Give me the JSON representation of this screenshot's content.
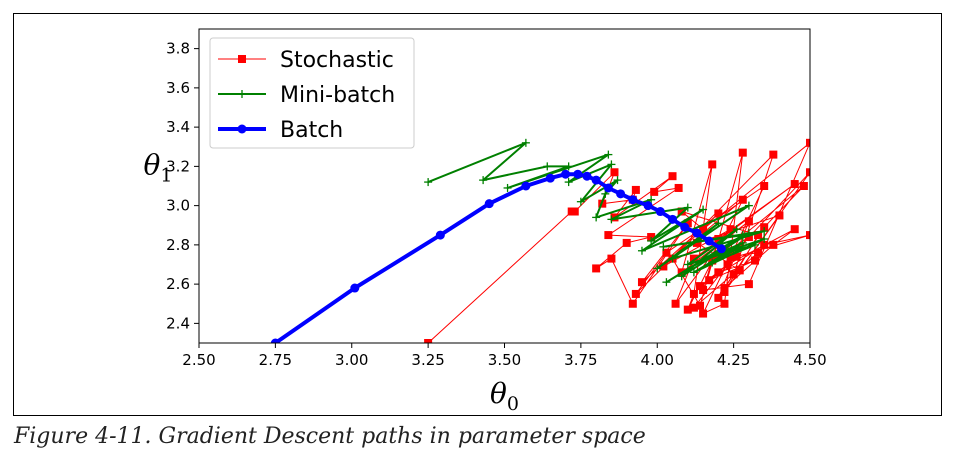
{
  "caption": "Figure 4-11. Gradient Descent paths in parameter space",
  "chart_data": {
    "type": "line",
    "xlabel": "θ0",
    "ylabel": "θ1",
    "xlim": [
      2.5,
      4.5
    ],
    "ylim": [
      2.3,
      3.9
    ],
    "xticks": [
      "2.50",
      "2.75",
      "3.00",
      "3.25",
      "3.50",
      "3.75",
      "4.00",
      "4.25",
      "4.50"
    ],
    "yticks": [
      "2.4",
      "2.6",
      "2.8",
      "3.0",
      "3.2",
      "3.4",
      "3.6",
      "3.8"
    ],
    "xtick_values": [
      2.5,
      2.75,
      3.0,
      3.25,
      3.5,
      3.75,
      4.0,
      4.25,
      4.5
    ],
    "ytick_values": [
      2.4,
      2.6,
      2.8,
      3.0,
      3.2,
      3.4,
      3.6,
      3.8
    ],
    "grid": false,
    "legend_position": "top-left",
    "series": [
      {
        "name": "Stochastic",
        "color": "#ff0000",
        "marker": "square",
        "linewidth": 1,
        "points": [
          [
            3.25,
            2.3
          ],
          [
            3.72,
            2.97
          ],
          [
            3.73,
            2.97
          ],
          [
            3.86,
            3.17
          ],
          [
            3.82,
            3.01
          ],
          [
            3.92,
            3.03
          ],
          [
            3.93,
            3.08
          ],
          [
            3.86,
            2.94
          ],
          [
            4.05,
            3.15
          ],
          [
            3.99,
            3.07
          ],
          [
            4.07,
            3.09
          ],
          [
            3.84,
            2.85
          ],
          [
            3.98,
            2.84
          ],
          [
            3.9,
            2.81
          ],
          [
            3.8,
            2.68
          ],
          [
            3.85,
            2.73
          ],
          [
            3.92,
            2.5
          ],
          [
            4.1,
            2.91
          ],
          [
            3.95,
            2.61
          ],
          [
            4.2,
            2.96
          ],
          [
            3.93,
            2.55
          ],
          [
            4.03,
            2.76
          ],
          [
            4.35,
            3.1
          ],
          [
            4.15,
            2.45
          ],
          [
            4.22,
            2.5
          ],
          [
            4.28,
            3.27
          ],
          [
            4.14,
            2.49
          ],
          [
            4.05,
            2.73
          ],
          [
            4.28,
            3.03
          ],
          [
            4.1,
            2.47
          ],
          [
            4.12,
            2.55
          ],
          [
            4.18,
            3.21
          ],
          [
            4.08,
            2.66
          ],
          [
            4.3,
            2.92
          ],
          [
            4.2,
            2.53
          ],
          [
            4.25,
            2.65
          ],
          [
            4.38,
            3.26
          ],
          [
            4.02,
            2.69
          ],
          [
            4.24,
            2.88
          ],
          [
            4.06,
            2.5
          ],
          [
            4.12,
            2.73
          ],
          [
            4.45,
            3.11
          ],
          [
            4.2,
            2.83
          ],
          [
            4.15,
            2.57
          ],
          [
            4.3,
            2.6
          ],
          [
            4.5,
            3.32
          ],
          [
            4.15,
            2.88
          ],
          [
            4.08,
            2.97
          ],
          [
            4.33,
            2.85
          ],
          [
            4.22,
            2.56
          ],
          [
            4.4,
            2.95
          ],
          [
            4.13,
            2.81
          ],
          [
            4.27,
            2.67
          ],
          [
            4.5,
            3.17
          ],
          [
            4.24,
            2.74
          ],
          [
            4.33,
            2.76
          ],
          [
            4.12,
            2.48
          ],
          [
            4.3,
            2.84
          ],
          [
            4.18,
            2.72
          ],
          [
            4.48,
            3.1
          ],
          [
            4.35,
            2.89
          ],
          [
            4.22,
            2.58
          ],
          [
            4.38,
            2.8
          ],
          [
            4.45,
            2.88
          ],
          [
            4.23,
            2.7
          ],
          [
            4.14,
            2.59
          ],
          [
            4.35,
            2.8
          ],
          [
            4.5,
            2.85
          ],
          [
            4.26,
            2.74
          ],
          [
            4.17,
            2.62
          ],
          [
            4.32,
            2.72
          ],
          [
            4.2,
            2.66
          ]
        ]
      },
      {
        "name": "Mini-batch",
        "color": "#008000",
        "marker": "plus",
        "linewidth": 2,
        "points": [
          [
            3.25,
            3.12
          ],
          [
            3.57,
            3.32
          ],
          [
            3.43,
            3.13
          ],
          [
            3.64,
            3.2
          ],
          [
            3.71,
            3.2
          ],
          [
            3.51,
            3.09
          ],
          [
            3.84,
            3.26
          ],
          [
            3.71,
            3.12
          ],
          [
            3.85,
            3.21
          ],
          [
            3.75,
            3.02
          ],
          [
            3.87,
            3.13
          ],
          [
            3.83,
            3.06
          ],
          [
            3.8,
            2.94
          ],
          [
            3.98,
            3.03
          ],
          [
            3.85,
            2.93
          ],
          [
            4.1,
            2.99
          ],
          [
            3.98,
            2.82
          ],
          [
            4.15,
            2.98
          ],
          [
            3.95,
            2.77
          ],
          [
            4.3,
            3.0
          ],
          [
            4.0,
            2.68
          ],
          [
            4.2,
            2.91
          ],
          [
            4.05,
            2.73
          ],
          [
            4.35,
            2.87
          ],
          [
            4.02,
            2.79
          ],
          [
            4.28,
            2.85
          ],
          [
            4.03,
            2.61
          ],
          [
            4.3,
            2.86
          ],
          [
            4.08,
            2.64
          ],
          [
            4.26,
            2.88
          ],
          [
            4.1,
            2.7
          ],
          [
            4.35,
            2.83
          ],
          [
            4.12,
            2.66
          ],
          [
            4.28,
            2.81
          ],
          [
            4.16,
            2.73
          ],
          [
            4.32,
            2.8
          ],
          [
            4.18,
            2.71
          ],
          [
            4.25,
            2.77
          ]
        ]
      },
      {
        "name": "Batch",
        "color": "#0000ff",
        "marker": "circle",
        "linewidth": 4,
        "points": [
          [
            2.75,
            2.3
          ],
          [
            3.01,
            2.58
          ],
          [
            3.29,
            2.85
          ],
          [
            3.45,
            3.01
          ],
          [
            3.57,
            3.1
          ],
          [
            3.65,
            3.14
          ],
          [
            3.7,
            3.16
          ],
          [
            3.74,
            3.16
          ],
          [
            3.77,
            3.15
          ],
          [
            3.8,
            3.13
          ],
          [
            3.84,
            3.09
          ],
          [
            3.88,
            3.06
          ],
          [
            3.92,
            3.03
          ],
          [
            3.97,
            3.0
          ],
          [
            4.01,
            2.97
          ],
          [
            4.05,
            2.93
          ],
          [
            4.09,
            2.89
          ],
          [
            4.13,
            2.86
          ],
          [
            4.17,
            2.82
          ],
          [
            4.21,
            2.78
          ]
        ]
      }
    ]
  }
}
